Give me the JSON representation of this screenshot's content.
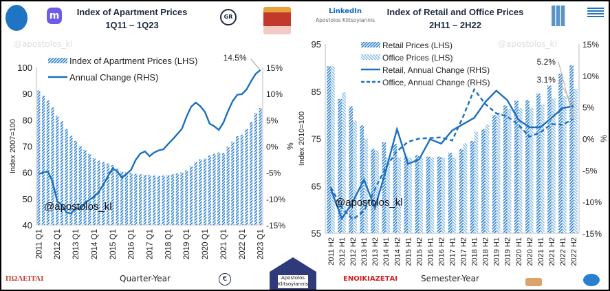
{
  "header": {
    "left_title": "Index of Apartment Prices",
    "left_subtitle": "1Q11 – 1Q23",
    "gr_badge": "GR",
    "linkedin_label": "LinkedIn",
    "linkedin_name": "Apostolos Klitsoyiannis",
    "right_title": "Index of Retail and Office Prices",
    "right_subtitle": "2H11 – 2H22"
  },
  "watermark": "@apostolos_kl",
  "footer": {
    "left_logo_text": "ΠΩΛΕΙΤΑΙ",
    "left_xlabel": "Quarter-Year",
    "center_badge": "Apostolos Klitsoyiannis",
    "right_logo_text": "ΕΝΟΙΚΙΑΖΕΤΑΙ",
    "right_xlabel": "Semester-Year"
  },
  "colors": {
    "bar": "#2b7fd0",
    "line": "#1a6fc0",
    "office_bar": "#7ab3e6"
  },
  "chart_data": [
    {
      "type": "bar+line",
      "xlabel": "Quarter-Year",
      "ylabel": "Index 2007=100",
      "y2label": "%",
      "ylim": [
        40,
        100
      ],
      "yticks": [
        40,
        50,
        60,
        70,
        80,
        90,
        100
      ],
      "y2lim": [
        -15,
        15
      ],
      "y2ticks": [
        "-15%",
        "-10%",
        "-5%",
        "0%",
        "5%",
        "10%",
        "15%"
      ],
      "tick_labels": [
        "2011 Q1",
        "2012 Q1",
        "2013 Q1",
        "2014 Q1",
        "2015 Q1",
        "2016 Q1",
        "2017 Q1",
        "2018 Q1",
        "2019 Q1",
        "2020 Q1",
        "2021 Q1",
        "2022 Q1",
        "2023 Q1"
      ],
      "legend_position": "top-left",
      "annotation": "14.5%",
      "series": [
        {
          "name": "Index of Apartment Prices (LHS)",
          "kind": "bar",
          "axis": "left",
          "values": [
            91.2,
            89.2,
            87.4,
            84.8,
            81.5,
            79.5,
            76.5,
            74,
            72,
            70,
            68.6,
            67,
            65.4,
            64.5,
            64,
            63.4,
            62.8,
            61.5,
            60.3,
            60,
            59.8,
            59.5,
            59.3,
            59.1,
            59,
            58.8,
            58.7,
            58.8,
            59,
            59.3,
            59.6,
            60,
            60.8,
            62.4,
            64,
            65,
            65.3,
            66.5,
            67.1,
            67.6,
            67.4,
            69.8,
            71.6,
            73.8,
            74.4,
            76.6,
            79.3,
            82.6,
            84.5
          ]
        },
        {
          "name": "Annual Change (RHS)",
          "kind": "line",
          "axis": "right",
          "values": [
            -5.3,
            -5,
            -4.8,
            -6.8,
            -10.5,
            -11.2,
            -12.6,
            -12.8,
            -11.8,
            -12,
            -10.8,
            -10.2,
            -9.6,
            -8.7,
            -7.3,
            -5.7,
            -4.2,
            -4.8,
            -6,
            -5.3,
            -4.5,
            -2.6,
            -1.4,
            -1,
            -1.9,
            -1.2,
            -0.8,
            -0.6,
            0.4,
            1.3,
            2.3,
            3.3,
            5.6,
            7.5,
            8.3,
            7.6,
            6.5,
            4.3,
            3.8,
            3.1,
            4.5,
            6.7,
            8.6,
            9.8,
            9.9,
            10.8,
            12.4,
            13.8,
            14.5
          ]
        }
      ]
    },
    {
      "type": "bar+line",
      "xlabel": "Semester-Year",
      "ylabel": "Index 2010=100",
      "y2label": "%",
      "ylim": [
        55,
        95
      ],
      "yticks": [
        55,
        65,
        75,
        85,
        95
      ],
      "y2lim": [
        -15,
        15
      ],
      "y2ticks": [
        "-15%",
        "-10%",
        "-5%",
        "0%",
        "5%",
        "10%",
        "15%"
      ],
      "categories": [
        "2011 H2",
        "2012 H1",
        "2012 H2",
        "2013 H1",
        "2013 H2",
        "2014 H1",
        "2014 H2",
        "2015 H1",
        "2015 H2",
        "2016 H1",
        "2016 H2",
        "2017 H1",
        "2017 H2",
        "2018 H1",
        "2018 H2",
        "2019 H1",
        "2019 H2",
        "2020 H1",
        "2020 H2",
        "2021 H1",
        "2021 H2",
        "2022 H1",
        "2022 H2"
      ],
      "legend_position": "top-left",
      "annotations": [
        "5.2%",
        "3.1%"
      ],
      "series": [
        {
          "name": "Retail Prices (LHS)",
          "kind": "bar",
          "axis": "left",
          "values": [
            90.3,
            83.4,
            81.8,
            77.8,
            72.8,
            74.2,
            73.9,
            71.2,
            71.5,
            71.2,
            71.2,
            72,
            72.8,
            74.5,
            77,
            80,
            82,
            83,
            83.2,
            84.5,
            86.2,
            88.7,
            90.5
          ]
        },
        {
          "name": "Office Prices (LHS)",
          "kind": "bar",
          "axis": "left",
          "values": [
            90.3,
            84.8,
            78.8,
            75,
            72.5,
            71,
            71,
            71,
            71,
            71,
            71,
            71,
            74,
            76.5,
            78,
            80.5,
            81.3,
            81.5,
            81.5,
            82.2,
            83.5,
            84,
            85.5
          ]
        },
        {
          "name": "Retail, Annual Change (RHS)",
          "kind": "line",
          "axis": "right",
          "values": [
            -8,
            -12.7,
            -10,
            -6.5,
            -11,
            -5,
            1.5,
            -4,
            -3.3,
            -0.1,
            -0.8,
            1.3,
            2.3,
            3.3,
            5.8,
            7.6,
            6.1,
            3,
            1.8,
            1.8,
            3.3,
            4.8,
            5.2
          ]
        },
        {
          "name": "Office, Annual Change (RHS)",
          "kind": "line",
          "dashed": true,
          "axis": "right",
          "values": [
            -7.7,
            -11,
            -12.8,
            -11.5,
            -8,
            -4.5,
            -2,
            -0.5,
            0,
            0.1,
            0.2,
            -0.3,
            3.5,
            7.8,
            5.5,
            4,
            3.5,
            2.2,
            0.3,
            1,
            2.3,
            2.2,
            3.1
          ]
        }
      ]
    }
  ]
}
